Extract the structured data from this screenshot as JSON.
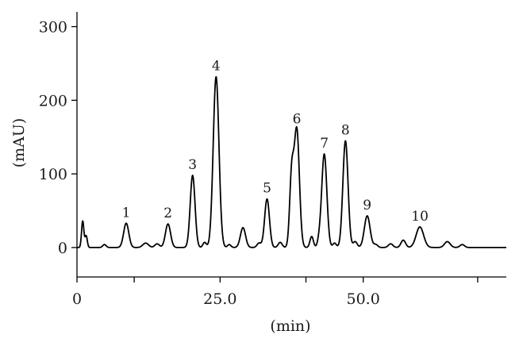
{
  "chart_data": {
    "type": "line",
    "title": "",
    "xlabel": "(min)",
    "ylabel": "(mAU)",
    "xlim": [
      0,
      75
    ],
    "ylim": [
      -40,
      320
    ],
    "grid": false,
    "x_ticks": [
      {
        "value": 0,
        "label": "0"
      },
      {
        "value": 25,
        "label": "25.0"
      },
      {
        "value": 50,
        "label": "50.0"
      }
    ],
    "x_minor_ticks": [
      10,
      40,
      70
    ],
    "y_ticks": [
      {
        "value": 0,
        "label": "0"
      },
      {
        "value": 100,
        "label": "100"
      },
      {
        "value": 200,
        "label": "200"
      },
      {
        "value": 300,
        "label": "300"
      }
    ],
    "baseline": 0,
    "series": [
      {
        "color": "#000000",
        "peaks": [
          {
            "rt": 1.0,
            "height": 36,
            "width": 0.2
          },
          {
            "rt": 1.6,
            "height": 16,
            "width": 0.2
          },
          {
            "rt": 4.8,
            "height": 4,
            "width": 0.3
          },
          {
            "rt": 8.6,
            "height": 33,
            "width": 0.45
          },
          {
            "rt": 12.0,
            "height": 6,
            "width": 0.5
          },
          {
            "rt": 14.0,
            "height": 5,
            "width": 0.4
          },
          {
            "rt": 15.9,
            "height": 32,
            "width": 0.45
          },
          {
            "rt": 20.2,
            "height": 98,
            "width": 0.42
          },
          {
            "rt": 22.3,
            "height": 7,
            "width": 0.3
          },
          {
            "rt": 24.3,
            "height": 232,
            "width": 0.5
          },
          {
            "rt": 26.6,
            "height": 4,
            "width": 0.3
          },
          {
            "rt": 29.0,
            "height": 27,
            "width": 0.45
          },
          {
            "rt": 31.8,
            "height": 6,
            "width": 0.35
          },
          {
            "rt": 33.2,
            "height": 66,
            "width": 0.42
          },
          {
            "rt": 35.5,
            "height": 7,
            "width": 0.35
          },
          {
            "rt": 37.5,
            "height": 95,
            "width": 0.35
          },
          {
            "rt": 38.4,
            "height": 160,
            "width": 0.45
          },
          {
            "rt": 41.0,
            "height": 15,
            "width": 0.3
          },
          {
            "rt": 42.3,
            "height": 8,
            "width": 0.3
          },
          {
            "rt": 43.2,
            "height": 127,
            "width": 0.45
          },
          {
            "rt": 45.0,
            "height": 6,
            "width": 0.3
          },
          {
            "rt": 46.9,
            "height": 145,
            "width": 0.45
          },
          {
            "rt": 48.6,
            "height": 8,
            "width": 0.35
          },
          {
            "rt": 50.7,
            "height": 43,
            "width": 0.5
          },
          {
            "rt": 52.2,
            "height": 4,
            "width": 0.35
          },
          {
            "rt": 54.8,
            "height": 5,
            "width": 0.4
          },
          {
            "rt": 57.0,
            "height": 10,
            "width": 0.4
          },
          {
            "rt": 59.9,
            "height": 28,
            "width": 0.65
          },
          {
            "rt": 64.7,
            "height": 8,
            "width": 0.5
          },
          {
            "rt": 67.3,
            "height": 4,
            "width": 0.4
          }
        ]
      }
    ],
    "annotations": [
      {
        "text": "1",
        "x": 8.6,
        "y": 33
      },
      {
        "text": "2",
        "x": 15.9,
        "y": 32
      },
      {
        "text": "3",
        "x": 20.2,
        "y": 98
      },
      {
        "text": "4",
        "x": 24.3,
        "y": 232
      },
      {
        "text": "5",
        "x": 33.2,
        "y": 66
      },
      {
        "text": "6",
        "x": 38.4,
        "y": 160
      },
      {
        "text": "7",
        "x": 43.2,
        "y": 127
      },
      {
        "text": "8",
        "x": 46.9,
        "y": 145
      },
      {
        "text": "9",
        "x": 50.7,
        "y": 43
      },
      {
        "text": "10",
        "x": 59.9,
        "y": 28
      }
    ]
  }
}
